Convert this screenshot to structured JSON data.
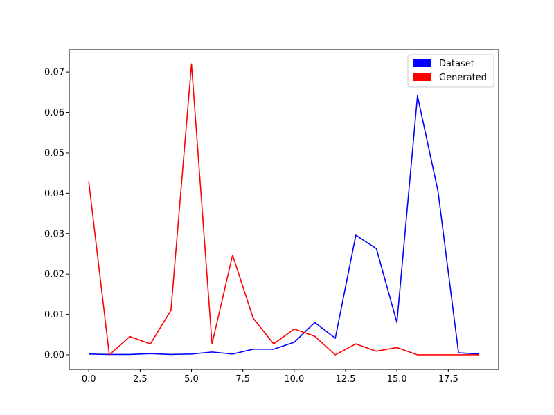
{
  "chart_data": {
    "type": "line",
    "title": "",
    "xlabel": "",
    "ylabel": "",
    "x": [
      0,
      1,
      2,
      3,
      4,
      5,
      6,
      7,
      8,
      9,
      10,
      11,
      12,
      13,
      14,
      15,
      16,
      17,
      18,
      19
    ],
    "xlim": [
      -0.95,
      19.95
    ],
    "ylim": [
      -0.0036,
      0.0755
    ],
    "xticks": [
      0.0,
      2.5,
      5.0,
      7.5,
      10.0,
      12.5,
      15.0,
      17.5
    ],
    "xtick_labels": [
      "0.0",
      "2.5",
      "5.0",
      "7.5",
      "10.0",
      "12.5",
      "15.0",
      "17.5"
    ],
    "yticks": [
      0.0,
      0.01,
      0.02,
      0.03,
      0.04,
      0.05,
      0.06,
      0.07
    ],
    "ytick_labels": [
      "0.00",
      "0.01",
      "0.02",
      "0.03",
      "0.04",
      "0.05",
      "0.06",
      "0.07"
    ],
    "grid": false,
    "legend_position": "top-right",
    "series": [
      {
        "name": "Dataset",
        "color": "#0000ff",
        "values": [
          0.0002,
          0.0001,
          0.0001,
          0.0003,
          0.0001,
          0.0002,
          0.0007,
          0.0002,
          0.0014,
          0.0014,
          0.0031,
          0.008,
          0.0041,
          0.0296,
          0.0263,
          0.008,
          0.0641,
          0.0405,
          0.0005,
          0.0002
        ]
      },
      {
        "name": "Generated",
        "color": "#ff0000",
        "values": [
          0.0429,
          0.0,
          0.0045,
          0.0027,
          0.011,
          0.072,
          0.0027,
          0.0247,
          0.0091,
          0.0027,
          0.0064,
          0.0046,
          0.0,
          0.0027,
          0.0009,
          0.0018,
          0.0,
          0.0,
          0.0,
          0.0
        ]
      }
    ]
  }
}
